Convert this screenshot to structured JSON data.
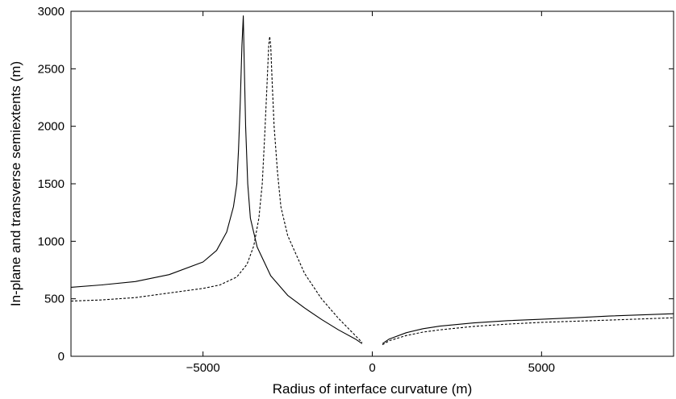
{
  "chart_data": {
    "type": "line",
    "title": "",
    "xlabel": "Radius of interface curvature (m)",
    "ylabel": "In-plane and transverse semiextents (m)",
    "xlim": [
      -8900,
      8900
    ],
    "ylim": [
      0,
      3000
    ],
    "xticks": [
      -5000,
      0,
      5000
    ],
    "xtick_labels": [
      "−5000",
      "0",
      "5000"
    ],
    "yticks": [
      0,
      500,
      1000,
      1500,
      2000,
      2500,
      3000
    ],
    "ytick_labels": [
      "0",
      "500",
      "1000",
      "1500",
      "2000",
      "2500",
      "3000"
    ],
    "grid": false,
    "legend": "none",
    "series": [
      {
        "style": "solid",
        "color": "#000000",
        "segments": [
          [
            [
              -8900,
              600
            ],
            [
              -8000,
              620
            ],
            [
              -7000,
              650
            ],
            [
              -6000,
              710
            ],
            [
              -5000,
              820
            ],
            [
              -4600,
              920
            ],
            [
              -4300,
              1080
            ],
            [
              -4100,
              1300
            ],
            [
              -4000,
              1500
            ],
            [
              -3950,
              1800
            ],
            [
              -3900,
              2200
            ],
            [
              -3850,
              2700
            ],
            [
              -3810,
              2960
            ],
            [
              -3780,
              2500
            ],
            [
              -3740,
              2000
            ],
            [
              -3680,
              1500
            ],
            [
              -3600,
              1200
            ],
            [
              -3400,
              950
            ],
            [
              -3000,
              700
            ],
            [
              -2500,
              530
            ],
            [
              -2000,
              420
            ],
            [
              -1500,
              320
            ],
            [
              -1000,
              230
            ],
            [
              -500,
              150
            ],
            [
              -300,
              110
            ]
          ],
          [
            [
              300,
              110
            ],
            [
              500,
              150
            ],
            [
              1000,
              205
            ],
            [
              1500,
              240
            ],
            [
              2000,
              262
            ],
            [
              3000,
              290
            ],
            [
              4000,
              310
            ],
            [
              5000,
              322
            ],
            [
              6000,
              335
            ],
            [
              7000,
              350
            ],
            [
              8000,
              360
            ],
            [
              8900,
              370
            ]
          ]
        ]
      },
      {
        "style": "dashed",
        "color": "#000000",
        "segments": [
          [
            [
              -8900,
              480
            ],
            [
              -8000,
              490
            ],
            [
              -7000,
              510
            ],
            [
              -6000,
              550
            ],
            [
              -5000,
              590
            ],
            [
              -4500,
              620
            ],
            [
              -4000,
              690
            ],
            [
              -3700,
              800
            ],
            [
              -3500,
              960
            ],
            [
              -3350,
              1200
            ],
            [
              -3250,
              1500
            ],
            [
              -3180,
              1900
            ],
            [
              -3120,
              2300
            ],
            [
              -3060,
              2700
            ],
            [
              -3030,
              2780
            ],
            [
              -3000,
              2700
            ],
            [
              -2960,
              2400
            ],
            [
              -2900,
              2000
            ],
            [
              -2800,
              1600
            ],
            [
              -2700,
              1300
            ],
            [
              -2500,
              1050
            ],
            [
              -2000,
              720
            ],
            [
              -1500,
              500
            ],
            [
              -1000,
              330
            ],
            [
              -500,
              180
            ],
            [
              -300,
              120
            ]
          ],
          [
            [
              300,
              100
            ],
            [
              500,
              135
            ],
            [
              1000,
              180
            ],
            [
              1500,
              210
            ],
            [
              2000,
              230
            ],
            [
              3000,
              260
            ],
            [
              4000,
              280
            ],
            [
              5000,
              295
            ],
            [
              6000,
              305
            ],
            [
              7000,
              315
            ],
            [
              8000,
              325
            ],
            [
              8900,
              335
            ]
          ]
        ]
      }
    ]
  }
}
